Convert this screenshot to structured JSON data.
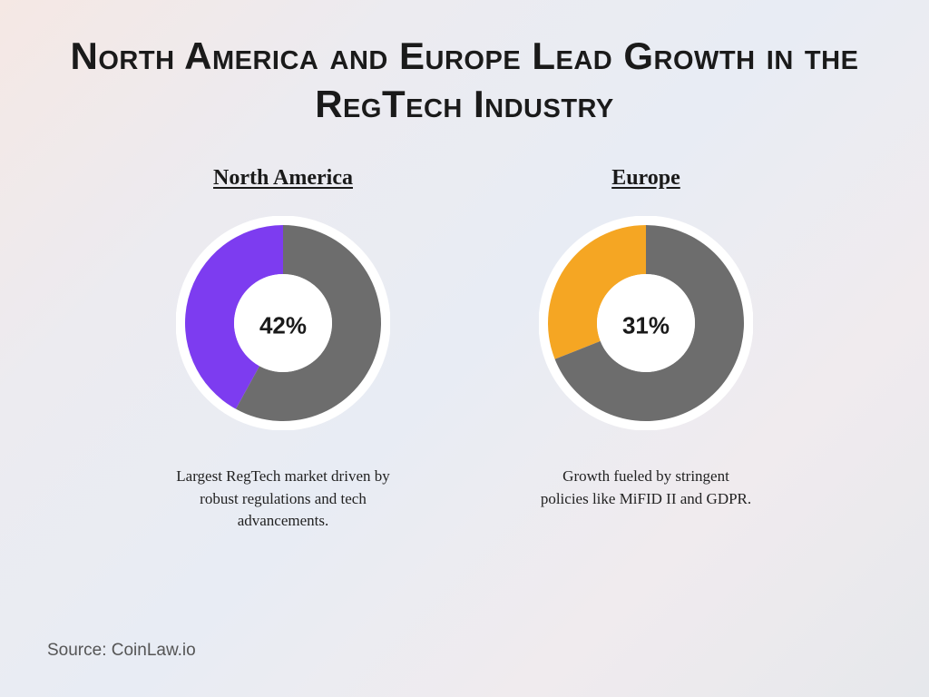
{
  "title": "North America and Europe Lead Growth in the RegTech Industry",
  "title_fontsize": 42,
  "title_color": "#1a1a1a",
  "background_gradient": [
    "#f5e8e4",
    "#ecebf0",
    "#e8ecf4",
    "#f0ebee",
    "#e6e8ec"
  ],
  "charts": [
    {
      "region": "North America",
      "type": "donut",
      "percentage": 42,
      "percentage_label": "42%",
      "slice_color": "#7d3cf0",
      "remainder_color": "#6d6d6d",
      "start_angle_deg": -90,
      "sweep_direction": "counter-clockwise",
      "outer_radius": 108,
      "inner_radius": 54,
      "ring_outline_color": "#ffffff",
      "ring_outline_width": 10,
      "caption": "Largest RegTech market driven by robust regulations and tech advancements.",
      "region_fontsize": 24,
      "pct_fontsize": 26,
      "caption_fontsize": 17
    },
    {
      "region": "Europe",
      "type": "donut",
      "percentage": 31,
      "percentage_label": "31%",
      "slice_color": "#f5a623",
      "remainder_color": "#6d6d6d",
      "start_angle_deg": -90,
      "sweep_direction": "counter-clockwise",
      "outer_radius": 108,
      "inner_radius": 54,
      "ring_outline_color": "#ffffff",
      "ring_outline_width": 10,
      "caption": "Growth fueled by stringent policies like MiFID II and GDPR.",
      "region_fontsize": 24,
      "pct_fontsize": 26,
      "caption_fontsize": 17
    }
  ],
  "source": "Source: CoinLaw.io",
  "source_fontsize": 19,
  "source_color": "#555555"
}
